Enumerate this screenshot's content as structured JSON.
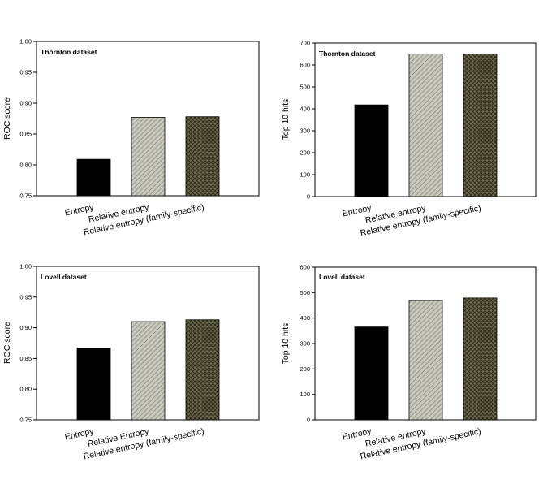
{
  "chart_data": [
    {
      "type": "bar",
      "title": "Thornton dataset",
      "xlabel": "",
      "ylabel": "ROC score",
      "ylim": [
        0.75,
        1.0
      ],
      "yticks": [
        "0.75",
        "0.80",
        "0.85",
        "0.90",
        "0.95",
        "1.00"
      ],
      "categories": [
        "Entropy",
        "Relative entropy",
        "Relative entropy (family-specific)"
      ],
      "values": [
        0.809,
        0.877,
        0.878
      ],
      "bar_styles": [
        "solid-black",
        "light-diagonal-hatch",
        "dark-crosshatch"
      ],
      "grid": false,
      "legend": "none"
    },
    {
      "type": "bar",
      "title": "Thornton dataset",
      "xlabel": "",
      "ylabel": "Top 10 hits",
      "ylim": [
        0,
        700
      ],
      "yticks": [
        "0",
        "100",
        "200",
        "300",
        "400",
        "500",
        "600",
        "700"
      ],
      "categories": [
        "Entropy",
        "Relative entropy",
        "Relative entropy (family-specific)"
      ],
      "values": [
        418,
        650,
        650
      ],
      "bar_styles": [
        "solid-black",
        "light-diagonal-hatch",
        "dark-crosshatch"
      ],
      "grid": false,
      "legend": "none"
    },
    {
      "type": "bar",
      "title": "Lovell dataset",
      "xlabel": "",
      "ylabel": "ROC score",
      "ylim": [
        0.75,
        1.0
      ],
      "yticks": [
        "0.75",
        "0.80",
        "0.85",
        "0.90",
        "0.95",
        "1.00"
      ],
      "categories": [
        "Entropy",
        "Relative Entropy",
        "Relative entropy (family-specific)"
      ],
      "values": [
        0.867,
        0.91,
        0.913
      ],
      "bar_styles": [
        "solid-black",
        "light-diagonal-hatch",
        "dark-crosshatch"
      ],
      "grid": false,
      "legend": "none"
    },
    {
      "type": "bar",
      "title": "Lovell dataset",
      "xlabel": "",
      "ylabel": "Top 10 hits",
      "ylim": [
        0,
        600
      ],
      "yticks": [
        "0",
        "100",
        "200",
        "300",
        "400",
        "500",
        "600"
      ],
      "categories": [
        "Entropy",
        "Relative entropy",
        "Relative entropy (family-specific)"
      ],
      "values": [
        365,
        469,
        479
      ],
      "bar_styles": [
        "solid-black",
        "light-diagonal-hatch",
        "dark-crosshatch"
      ],
      "grid": false,
      "legend": "none"
    }
  ],
  "colors": {
    "solid_bar": "#000000",
    "light_hatch_bg": "#c8c8bc",
    "light_hatch_line": "#6e6e64",
    "dark_hatch_bg": "#6e6a4c",
    "dark_hatch_line": "#262618"
  }
}
